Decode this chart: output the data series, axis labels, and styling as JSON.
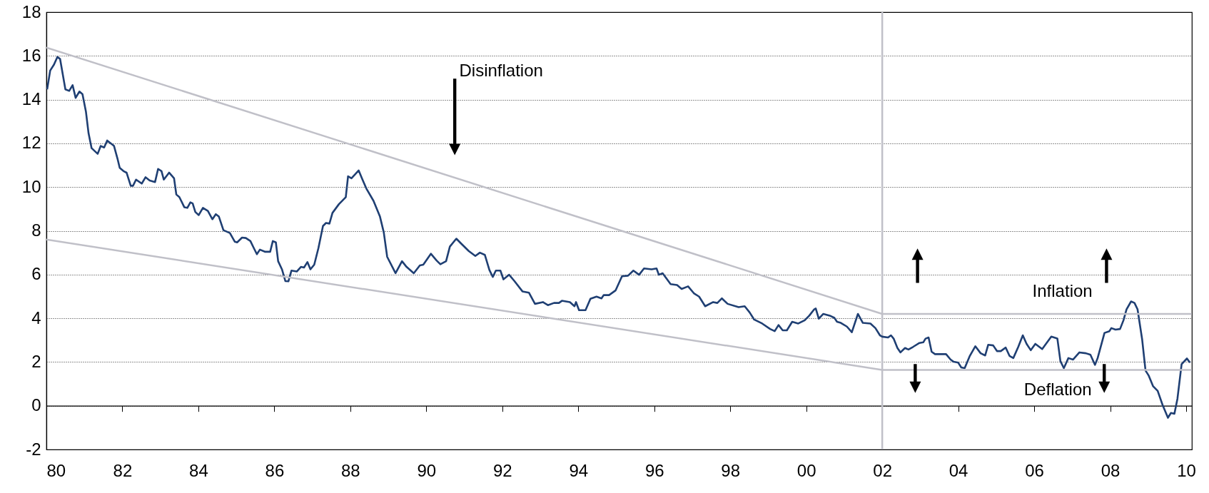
{
  "chart_data": {
    "type": "line",
    "line_style": "solid",
    "grid": "y",
    "xlim": [
      1980,
      2010.15
    ],
    "ylim": [
      -2,
      18
    ],
    "xticks": [
      {
        "value": 1980,
        "label": "80"
      },
      {
        "value": 1982,
        "label": "82"
      },
      {
        "value": 1984,
        "label": "84"
      },
      {
        "value": 1986,
        "label": "86"
      },
      {
        "value": 1988,
        "label": "88"
      },
      {
        "value": 1990,
        "label": "90"
      },
      {
        "value": 1992,
        "label": "92"
      },
      {
        "value": 1994,
        "label": "94"
      },
      {
        "value": 1996,
        "label": "96"
      },
      {
        "value": 1998,
        "label": "98"
      },
      {
        "value": 2000,
        "label": "00"
      },
      {
        "value": 2002,
        "label": "02"
      },
      {
        "value": 2004,
        "label": "04"
      },
      {
        "value": 2006,
        "label": "06"
      },
      {
        "value": 2008,
        "label": "08"
      },
      {
        "value": 2010,
        "label": "10"
      }
    ],
    "yticks": [
      -2,
      0,
      2,
      4,
      6,
      8,
      10,
      12,
      14,
      16,
      18
    ],
    "annotations": [
      "Disinflation",
      "Inflation",
      "Deflation"
    ],
    "ref_lines": [
      {
        "axis": "x",
        "value": 2002,
        "color": "#c0c0c8"
      }
    ],
    "series": [
      {
        "color": "#1f3f73",
        "x": [
          1980.02,
          1980.1,
          1980.2,
          1980.29,
          1980.36,
          1980.5,
          1980.6,
          1980.69,
          1980.77,
          1980.87,
          1980.95,
          1981.04,
          1981.11,
          1981.19,
          1981.35,
          1981.43,
          1981.52,
          1981.6,
          1981.78,
          1981.87,
          1981.93,
          1982.03,
          1982.11,
          1982.22,
          1982.28,
          1982.36,
          1982.51,
          1982.61,
          1982.72,
          1982.86,
          1982.94,
          1983.03,
          1983.09,
          1983.23,
          1983.36,
          1983.42,
          1983.5,
          1983.63,
          1983.71,
          1983.79,
          1983.85,
          1983.92,
          1984.01,
          1984.12,
          1984.25,
          1984.37,
          1984.46,
          1984.54,
          1984.66,
          1984.83,
          1984.96,
          1985.02,
          1985.15,
          1985.25,
          1985.37,
          1985.46,
          1985.54,
          1985.62,
          1985.76,
          1985.89,
          1985.96,
          1986.04,
          1986.1,
          1986.2,
          1986.29,
          1986.37,
          1986.45,
          1986.59,
          1986.7,
          1986.78,
          1986.87,
          1986.95,
          1987.05,
          1987.16,
          1987.28,
          1987.36,
          1987.45,
          1987.53,
          1987.7,
          1987.88,
          1987.94,
          1988.03,
          1988.22,
          1988.32,
          1988.42,
          1988.61,
          1988.78,
          1988.88,
          1988.97,
          1989.19,
          1989.36,
          1989.48,
          1989.67,
          1989.83,
          1989.92,
          1990.12,
          1990.27,
          1990.37,
          1990.52,
          1990.62,
          1990.79,
          1990.91,
          1991.12,
          1991.29,
          1991.41,
          1991.54,
          1991.66,
          1991.75,
          1991.83,
          1991.95,
          1992.03,
          1992.18,
          1992.32,
          1992.53,
          1992.7,
          1992.86,
          1993.07,
          1993.2,
          1993.36,
          1993.49,
          1993.57,
          1993.78,
          1993.9,
          1993.94,
          1994.02,
          1994.19,
          1994.32,
          1994.48,
          1994.61,
          1994.67,
          1994.81,
          1994.98,
          1995.15,
          1995.31,
          1995.45,
          1995.6,
          1995.73,
          1995.93,
          1996.06,
          1996.12,
          1996.22,
          1996.43,
          1996.6,
          1996.72,
          1996.89,
          1997.05,
          1997.18,
          1997.34,
          1997.55,
          1997.66,
          1997.78,
          1997.93,
          1998.22,
          1998.38,
          1998.51,
          1998.63,
          1998.84,
          1999.05,
          1999.17,
          1999.27,
          1999.38,
          1999.49,
          1999.63,
          1999.79,
          1999.96,
          2000.08,
          2000.21,
          2000.25,
          2000.33,
          2000.45,
          2000.62,
          2000.74,
          2000.81,
          2000.91,
          2001.07,
          2001.2,
          2001.36,
          2001.49,
          2001.69,
          2001.82,
          2001.94,
          2002.0,
          2002.15,
          2002.23,
          2002.3,
          2002.4,
          2002.48,
          2002.6,
          2002.69,
          2002.81,
          2002.98,
          2003.08,
          2003.14,
          2003.22,
          2003.3,
          2003.39,
          2003.68,
          2003.8,
          2003.88,
          2004.0,
          2004.08,
          2004.17,
          2004.3,
          2004.45,
          2004.59,
          2004.71,
          2004.79,
          2004.92,
          2005.02,
          2005.12,
          2005.25,
          2005.35,
          2005.45,
          2005.58,
          2005.7,
          2005.8,
          2005.91,
          2006.03,
          2006.21,
          2006.45,
          2006.61,
          2006.69,
          2006.78,
          2006.9,
          2007.02,
          2007.19,
          2007.36,
          2007.48,
          2007.6,
          2007.67,
          2007.85,
          2007.98,
          2008.03,
          2008.14,
          2008.26,
          2008.35,
          2008.43,
          2008.55,
          2008.64,
          2008.72,
          2008.84,
          2008.93,
          2009.01,
          2009.13,
          2009.25,
          2009.38,
          2009.52,
          2009.6,
          2009.69,
          2009.77,
          2009.88,
          2010.02,
          2010.1
        ],
        "values": [
          14.47,
          15.33,
          15.6,
          15.95,
          15.86,
          14.47,
          14.4,
          14.66,
          14.08,
          14.37,
          14.25,
          13.46,
          12.46,
          11.78,
          11.52,
          11.88,
          11.81,
          12.13,
          11.88,
          11.31,
          10.88,
          10.73,
          10.66,
          10.06,
          10.06,
          10.34,
          10.16,
          10.45,
          10.3,
          10.23,
          10.83,
          10.73,
          10.34,
          10.66,
          10.4,
          9.66,
          9.54,
          9.08,
          9.05,
          9.3,
          9.25,
          8.86,
          8.72,
          9.05,
          8.91,
          8.53,
          8.76,
          8.65,
          8.03,
          7.9,
          7.5,
          7.47,
          7.69,
          7.67,
          7.53,
          7.21,
          6.93,
          7.14,
          7.04,
          7.04,
          7.53,
          7.47,
          6.61,
          6.24,
          5.7,
          5.69,
          6.18,
          6.14,
          6.35,
          6.32,
          6.57,
          6.24,
          6.45,
          7.21,
          8.22,
          8.36,
          8.33,
          8.82,
          9.22,
          9.54,
          10.49,
          10.4,
          10.76,
          10.34,
          9.94,
          9.37,
          8.65,
          7.93,
          6.81,
          6.06,
          6.61,
          6.35,
          6.06,
          6.42,
          6.45,
          6.95,
          6.64,
          6.47,
          6.61,
          7.28,
          7.64,
          7.43,
          7.07,
          6.85,
          7.0,
          6.9,
          6.21,
          5.89,
          6.18,
          6.18,
          5.78,
          5.99,
          5.7,
          5.23,
          5.17,
          4.66,
          4.74,
          4.6,
          4.7,
          4.7,
          4.8,
          4.74,
          4.55,
          4.74,
          4.37,
          4.37,
          4.89,
          4.99,
          4.91,
          5.06,
          5.06,
          5.27,
          5.92,
          5.95,
          6.18,
          5.99,
          6.28,
          6.24,
          6.28,
          5.99,
          6.06,
          5.56,
          5.52,
          5.34,
          5.46,
          5.13,
          4.99,
          4.55,
          4.74,
          4.7,
          4.91,
          4.66,
          4.51,
          4.55,
          4.27,
          3.94,
          3.76,
          3.51,
          3.41,
          3.69,
          3.45,
          3.45,
          3.84,
          3.76,
          3.91,
          4.12,
          4.41,
          4.45,
          3.98,
          4.2,
          4.12,
          4.02,
          3.84,
          3.79,
          3.62,
          3.36,
          4.2,
          3.79,
          3.76,
          3.55,
          3.22,
          3.16,
          3.12,
          3.22,
          3.07,
          2.64,
          2.44,
          2.64,
          2.57,
          2.69,
          2.87,
          2.9,
          3.07,
          3.12,
          2.47,
          2.36,
          2.36,
          2.11,
          2.01,
          1.97,
          1.75,
          1.72,
          2.26,
          2.72,
          2.4,
          2.3,
          2.79,
          2.76,
          2.5,
          2.5,
          2.66,
          2.28,
          2.18,
          2.69,
          3.22,
          2.83,
          2.54,
          2.83,
          2.59,
          3.16,
          3.07,
          2.04,
          1.72,
          2.18,
          2.11,
          2.44,
          2.4,
          2.33,
          1.87,
          2.18,
          3.33,
          3.41,
          3.55,
          3.48,
          3.51,
          3.91,
          4.41,
          4.77,
          4.7,
          4.41,
          3.05,
          1.61,
          1.39,
          0.89,
          0.68,
          0.03,
          -0.55,
          -0.33,
          -0.37,
          0.32,
          1.9,
          2.16,
          1.97
        ]
      },
      {
        "type": "line",
        "color": "#c0c0c8",
        "x": [
          1980,
          2002,
          2010.15
        ],
        "values": [
          16.38,
          4.2,
          4.2
        ]
      },
      {
        "type": "line",
        "color": "#c0c0c8",
        "x": [
          1980,
          2002,
          2010.15
        ],
        "values": [
          7.6,
          1.64,
          1.64
        ]
      }
    ]
  }
}
